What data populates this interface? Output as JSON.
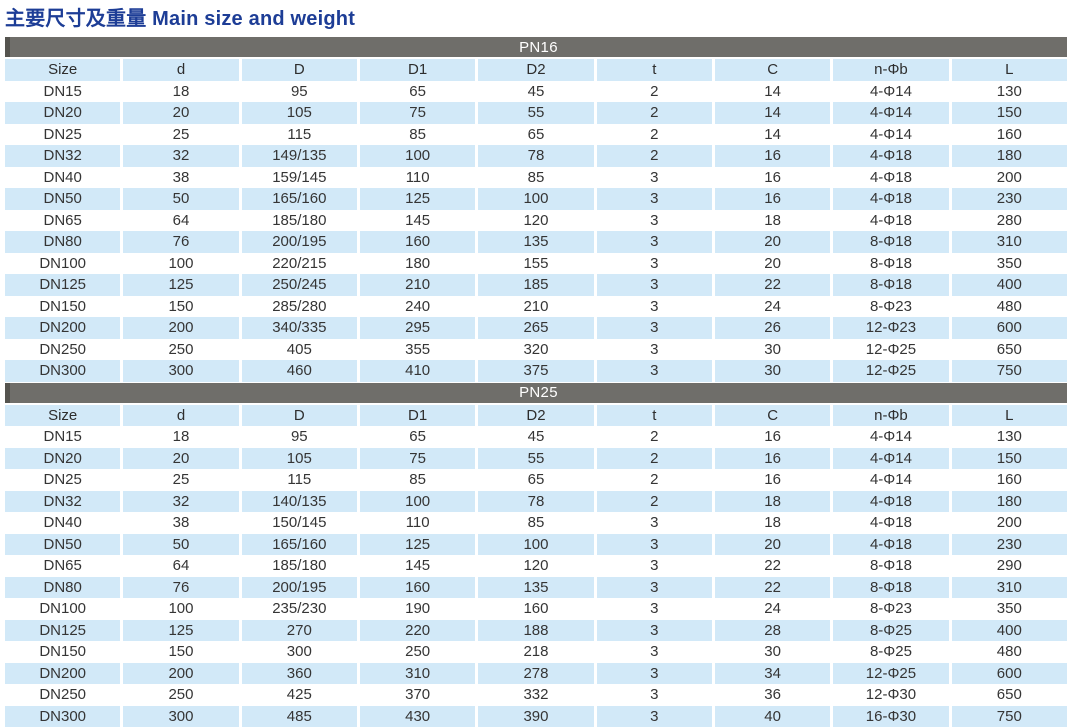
{
  "page": {
    "title": "主要尺寸及重量 Main size and weight"
  },
  "colors": {
    "title_text": "#1d3d96",
    "section_bar_bg": "#6f6e6a",
    "section_bar_text": "#ffffff",
    "stripe_blue": "#d2e9f8",
    "body_text": "#353535"
  },
  "table": {
    "columns": [
      "Size",
      "d",
      "D",
      "D1",
      "D2",
      "t",
      "C",
      "n-Φb",
      "L"
    ],
    "sections": [
      {
        "name": "PN16",
        "rows": [
          [
            "DN15",
            "18",
            "95",
            "65",
            "45",
            "2",
            "14",
            "4-Φ14",
            "130"
          ],
          [
            "DN20",
            "20",
            "105",
            "75",
            "55",
            "2",
            "14",
            "4-Φ14",
            "150"
          ],
          [
            "DN25",
            "25",
            "115",
            "85",
            "65",
            "2",
            "14",
            "4-Φ14",
            "160"
          ],
          [
            "DN32",
            "32",
            "149/135",
            "100",
            "78",
            "2",
            "16",
            "4-Φ18",
            "180"
          ],
          [
            "DN40",
            "38",
            "159/145",
            "110",
            "85",
            "3",
            "16",
            "4-Φ18",
            "200"
          ],
          [
            "DN50",
            "50",
            "165/160",
            "125",
            "100",
            "3",
            "16",
            "4-Φ18",
            "230"
          ],
          [
            "DN65",
            "64",
            "185/180",
            "145",
            "120",
            "3",
            "18",
            "4-Φ18",
            "280"
          ],
          [
            "DN80",
            "76",
            "200/195",
            "160",
            "135",
            "3",
            "20",
            "8-Φ18",
            "310"
          ],
          [
            "DN100",
            "100",
            "220/215",
            "180",
            "155",
            "3",
            "20",
            "8-Φ18",
            "350"
          ],
          [
            "DN125",
            "125",
            "250/245",
            "210",
            "185",
            "3",
            "22",
            "8-Φ18",
            "400"
          ],
          [
            "DN150",
            "150",
            "285/280",
            "240",
            "210",
            "3",
            "24",
            "8-Φ23",
            "480"
          ],
          [
            "DN200",
            "200",
            "340/335",
            "295",
            "265",
            "3",
            "26",
            "12-Φ23",
            "600"
          ],
          [
            "DN250",
            "250",
            "405",
            "355",
            "320",
            "3",
            "30",
            "12-Φ25",
            "650"
          ],
          [
            "DN300",
            "300",
            "460",
            "410",
            "375",
            "3",
            "30",
            "12-Φ25",
            "750"
          ]
        ]
      },
      {
        "name": "PN25",
        "rows": [
          [
            "DN15",
            "18",
            "95",
            "65",
            "45",
            "2",
            "16",
            "4-Φ14",
            "130"
          ],
          [
            "DN20",
            "20",
            "105",
            "75",
            "55",
            "2",
            "16",
            "4-Φ14",
            "150"
          ],
          [
            "DN25",
            "25",
            "115",
            "85",
            "65",
            "2",
            "16",
            "4-Φ14",
            "160"
          ],
          [
            "DN32",
            "32",
            "140/135",
            "100",
            "78",
            "2",
            "18",
            "4-Φ18",
            "180"
          ],
          [
            "DN40",
            "38",
            "150/145",
            "110",
            "85",
            "3",
            "18",
            "4-Φ18",
            "200"
          ],
          [
            "DN50",
            "50",
            "165/160",
            "125",
            "100",
            "3",
            "20",
            "4-Φ18",
            "230"
          ],
          [
            "DN65",
            "64",
            "185/180",
            "145",
            "120",
            "3",
            "22",
            "8-Φ18",
            "290"
          ],
          [
            "DN80",
            "76",
            "200/195",
            "160",
            "135",
            "3",
            "22",
            "8-Φ18",
            "310"
          ],
          [
            "DN100",
            "100",
            "235/230",
            "190",
            "160",
            "3",
            "24",
            "8-Φ23",
            "350"
          ],
          [
            "DN125",
            "125",
            "270",
            "220",
            "188",
            "3",
            "28",
            "8-Φ25",
            "400"
          ],
          [
            "DN150",
            "150",
            "300",
            "250",
            "218",
            "3",
            "30",
            "8-Φ25",
            "480"
          ],
          [
            "DN200",
            "200",
            "360",
            "310",
            "278",
            "3",
            "34",
            "12-Φ25",
            "600"
          ],
          [
            "DN250",
            "250",
            "425",
            "370",
            "332",
            "3",
            "36",
            "12-Φ30",
            "650"
          ],
          [
            "DN300",
            "300",
            "485",
            "430",
            "390",
            "3",
            "40",
            "16-Φ30",
            "750"
          ]
        ]
      }
    ]
  }
}
